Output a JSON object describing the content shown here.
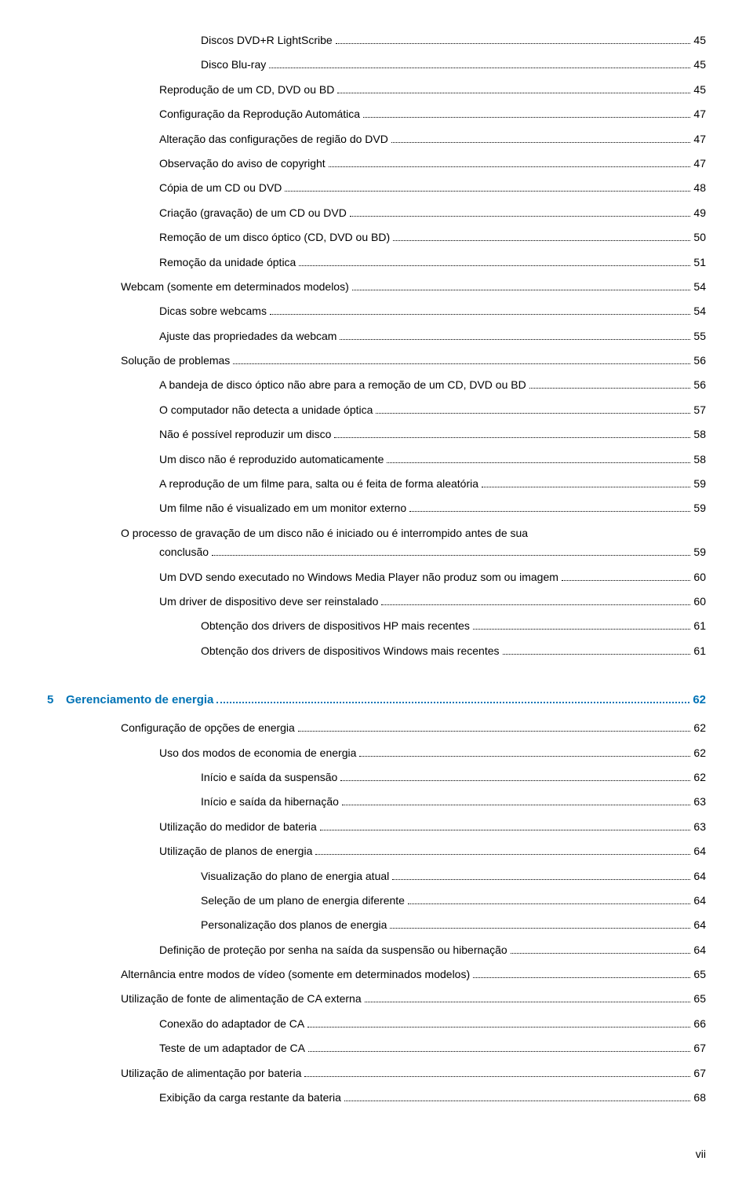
{
  "footer": "vii",
  "chapter": {
    "num": "5",
    "title": "Gerenciamento de energia",
    "page": "62"
  },
  "entries": [
    {
      "indent": "indent-2",
      "label": "Discos DVD+R LightScribe",
      "page": "45"
    },
    {
      "indent": "indent-2",
      "label": "Disco Blu-ray",
      "page": "45"
    },
    {
      "indent": "indent-1",
      "label": "Reprodução de um CD, DVD ou BD",
      "page": "45"
    },
    {
      "indent": "indent-1",
      "label": "Configuração da Reprodução Automática",
      "page": "47"
    },
    {
      "indent": "indent-1",
      "label": "Alteração das configurações de região do DVD",
      "page": "47"
    },
    {
      "indent": "indent-1",
      "label": "Observação do aviso de copyright",
      "page": "47"
    },
    {
      "indent": "indent-1",
      "label": "Cópia de um CD ou DVD",
      "page": "48"
    },
    {
      "indent": "indent-1",
      "label": "Criação (gravação) de um CD ou DVD",
      "page": "49"
    },
    {
      "indent": "indent-1",
      "label": "Remoção de um disco óptico (CD, DVD ou BD)",
      "page": "50"
    },
    {
      "indent": "indent-1",
      "label": "Remoção da unidade óptica",
      "page": "51"
    },
    {
      "indent": "indent-sec",
      "label": "Webcam (somente em determinados modelos)",
      "page": "54"
    },
    {
      "indent": "indent-1",
      "label": "Dicas sobre webcams",
      "page": "54"
    },
    {
      "indent": "indent-1",
      "label": "Ajuste das propriedades da webcam",
      "page": "55"
    },
    {
      "indent": "indent-sec",
      "label": "Solução de problemas",
      "page": "56"
    },
    {
      "indent": "indent-1",
      "label": "A bandeja de disco óptico não abre para a remoção de um CD, DVD ou BD",
      "page": "56"
    },
    {
      "indent": "indent-1",
      "label": "O computador não detecta a unidade óptica",
      "page": "57"
    },
    {
      "indent": "indent-1",
      "label": "Não é possível reproduzir um disco",
      "page": "58"
    },
    {
      "indent": "indent-1",
      "label": "Um disco não é reproduzido automaticamente",
      "page": "58"
    },
    {
      "indent": "indent-1",
      "label": "A reprodução de um filme para, salta ou é feita de forma aleatória",
      "page": "59"
    },
    {
      "indent": "indent-1",
      "label": "Um filme não é visualizado em um monitor externo",
      "page": "59"
    },
    {
      "indent": "indent-1",
      "label": "O processo de gravação de um disco não é iniciado ou é interrompido antes de sua",
      "wrap": true
    },
    {
      "indent": "indent-1",
      "label": "conclusão",
      "page": "59"
    },
    {
      "indent": "indent-1",
      "label": "Um DVD sendo executado no Windows Media Player não produz som ou imagem",
      "page": "60"
    },
    {
      "indent": "indent-1",
      "label": "Um driver de dispositivo deve ser reinstalado",
      "page": "60"
    },
    {
      "indent": "indent-2",
      "label": "Obtenção dos drivers de dispositivos HP mais recentes",
      "page": "61"
    },
    {
      "indent": "indent-2",
      "label": "Obtenção dos drivers de dispositivos Windows mais recentes",
      "page": "61"
    }
  ],
  "entries2": [
    {
      "indent": "indent-sec",
      "label": "Configuração de opções de energia",
      "page": "62"
    },
    {
      "indent": "indent-1",
      "label": "Uso dos modos de economia de energia",
      "page": "62"
    },
    {
      "indent": "indent-2",
      "label": "Início e saída da suspensão",
      "page": "62"
    },
    {
      "indent": "indent-2",
      "label": "Início e saída da hibernação",
      "page": "63"
    },
    {
      "indent": "indent-1",
      "label": "Utilização do medidor de bateria",
      "page": "63"
    },
    {
      "indent": "indent-1",
      "label": "Utilização de planos de energia",
      "page": "64"
    },
    {
      "indent": "indent-2",
      "label": "Visualização do plano de energia atual",
      "page": "64"
    },
    {
      "indent": "indent-2",
      "label": "Seleção de um plano de energia diferente",
      "page": "64"
    },
    {
      "indent": "indent-2",
      "label": "Personalização dos planos de energia",
      "page": "64"
    },
    {
      "indent": "indent-1",
      "label": "Definição de proteção por senha na saída da suspensão ou hibernação",
      "page": "64"
    },
    {
      "indent": "indent-sec",
      "label": "Alternância entre modos de vídeo (somente em determinados modelos)",
      "page": "65"
    },
    {
      "indent": "indent-sec",
      "label": "Utilização de fonte de alimentação de CA externa",
      "page": "65"
    },
    {
      "indent": "indent-1",
      "label": "Conexão do adaptador de CA",
      "page": "66"
    },
    {
      "indent": "indent-1",
      "label": "Teste de um adaptador de CA",
      "page": "67"
    },
    {
      "indent": "indent-sec",
      "label": "Utilização de alimentação por bateria",
      "page": "67"
    },
    {
      "indent": "indent-1",
      "label": "Exibição da carga restante da bateria",
      "page": "68"
    }
  ]
}
